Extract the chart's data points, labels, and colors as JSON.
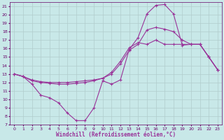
{
  "xlabel": "Windchill (Refroidissement éolien,°C)",
  "bg_color": "#c8e8e8",
  "grid_color": "#b0cccc",
  "line_color": "#993399",
  "marker": "+",
  "xlim": [
    -0.5,
    23.5
  ],
  "ylim": [
    7,
    21.5
  ],
  "yticks": [
    7,
    8,
    9,
    10,
    11,
    12,
    13,
    14,
    15,
    16,
    17,
    18,
    19,
    20,
    21
  ],
  "xticks": [
    0,
    1,
    2,
    3,
    4,
    5,
    6,
    7,
    8,
    9,
    10,
    11,
    12,
    13,
    14,
    15,
    16,
    17,
    18,
    19,
    20,
    21,
    22,
    23
  ],
  "curve1_x": [
    0,
    1,
    2,
    3,
    4,
    5,
    6,
    7,
    8,
    9,
    10,
    11,
    12,
    13,
    14,
    15,
    16,
    17,
    18,
    19,
    20,
    21,
    22,
    23
  ],
  "curve1_y": [
    13.0,
    12.7,
    11.8,
    10.5,
    10.2,
    9.6,
    8.4,
    7.5,
    7.5,
    9.0,
    12.2,
    11.8,
    12.3,
    15.9,
    17.3,
    20.1,
    21.1,
    21.2,
    20.1,
    16.4,
    16.5,
    16.5,
    15.0,
    13.5
  ],
  "curve2_x": [
    0,
    1,
    2,
    3,
    4,
    5,
    6,
    7,
    8,
    9,
    10,
    11,
    12,
    13,
    14,
    15,
    16,
    17,
    18,
    19,
    20,
    21,
    22,
    23
  ],
  "curve2_y": [
    13.0,
    12.7,
    12.3,
    12.1,
    12.0,
    12.0,
    12.0,
    12.1,
    12.2,
    12.3,
    12.5,
    13.2,
    14.5,
    16.1,
    16.7,
    16.5,
    17.0,
    16.5,
    16.5,
    16.5,
    16.5,
    16.5,
    15.0,
    13.5
  ],
  "curve3_x": [
    0,
    1,
    2,
    3,
    4,
    5,
    6,
    7,
    8,
    9,
    10,
    11,
    12,
    13,
    14,
    15,
    16,
    17,
    18,
    19,
    20,
    21,
    22,
    23
  ],
  "curve3_y": [
    13.0,
    12.7,
    12.2,
    12.0,
    11.9,
    11.8,
    11.8,
    11.9,
    12.0,
    12.2,
    12.5,
    13.0,
    14.2,
    15.8,
    16.5,
    18.2,
    18.5,
    18.3,
    18.0,
    17.0,
    16.5,
    16.5,
    15.0,
    13.5
  ]
}
